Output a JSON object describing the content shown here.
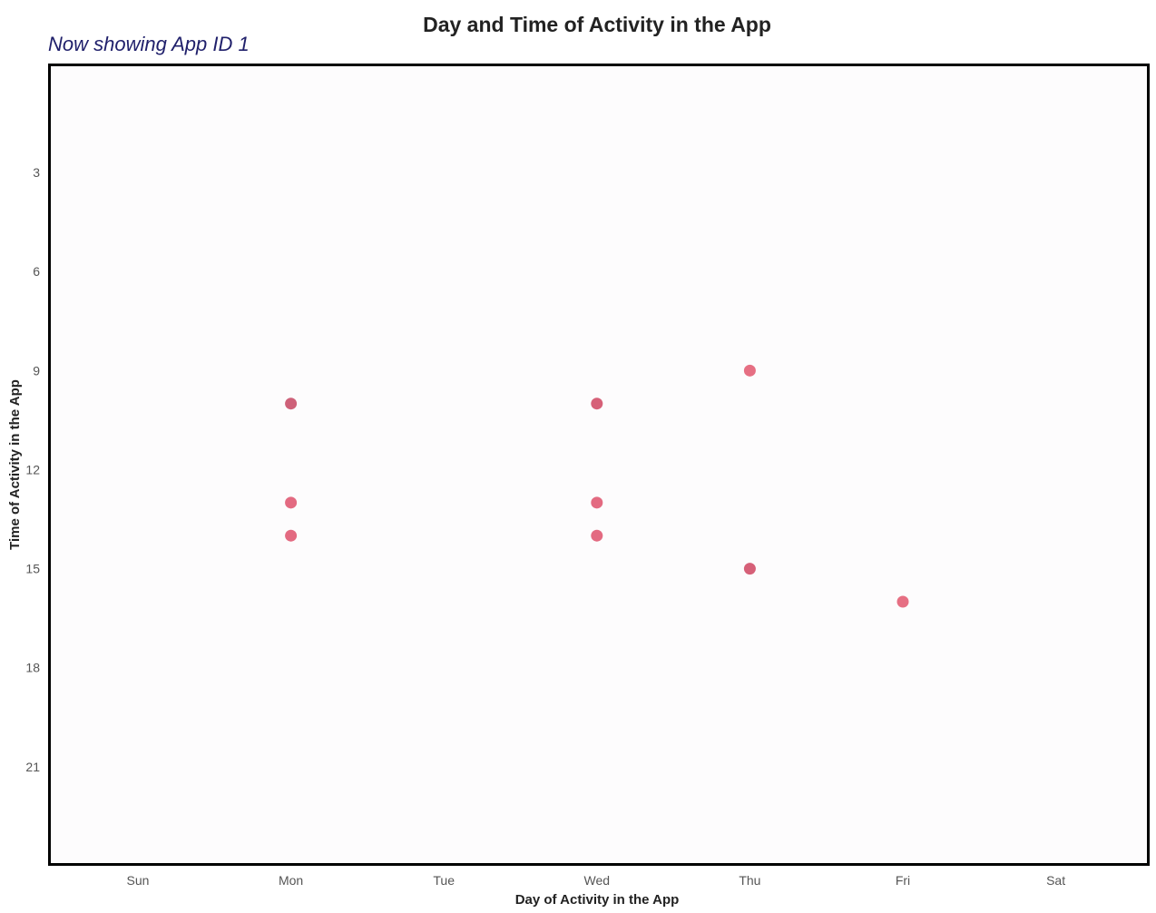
{
  "chart_data": {
    "type": "scatter",
    "title": "Day and Time of Activity in the App",
    "subtitle": "Now showing App ID 1",
    "xlabel": "Day of Activity in the App",
    "ylabel": "Time of Activity in the App",
    "categories": [
      "Sun",
      "Mon",
      "Tue",
      "Wed",
      "Thu",
      "Fri",
      "Sat"
    ],
    "yticks": [
      3,
      6,
      9,
      12,
      15,
      18,
      21
    ],
    "ylim": [
      24,
      -0.3
    ],
    "points": [
      {
        "day": "Mon",
        "hour": 10,
        "color": "#c9506a"
      },
      {
        "day": "Mon",
        "hour": 13,
        "color": "#e05a73"
      },
      {
        "day": "Mon",
        "hour": 14,
        "color": "#e05a73"
      },
      {
        "day": "Wed",
        "hour": 10,
        "color": "#d24f69"
      },
      {
        "day": "Wed",
        "hour": 13,
        "color": "#e05a73"
      },
      {
        "day": "Wed",
        "hour": 14,
        "color": "#e05a73"
      },
      {
        "day": "Thu",
        "hour": 9,
        "color": "#e35f76"
      },
      {
        "day": "Thu",
        "hour": 15,
        "color": "#d24f69"
      },
      {
        "day": "Fri",
        "hour": 16,
        "color": "#e35f76"
      }
    ],
    "grid": false,
    "legend": "none"
  }
}
